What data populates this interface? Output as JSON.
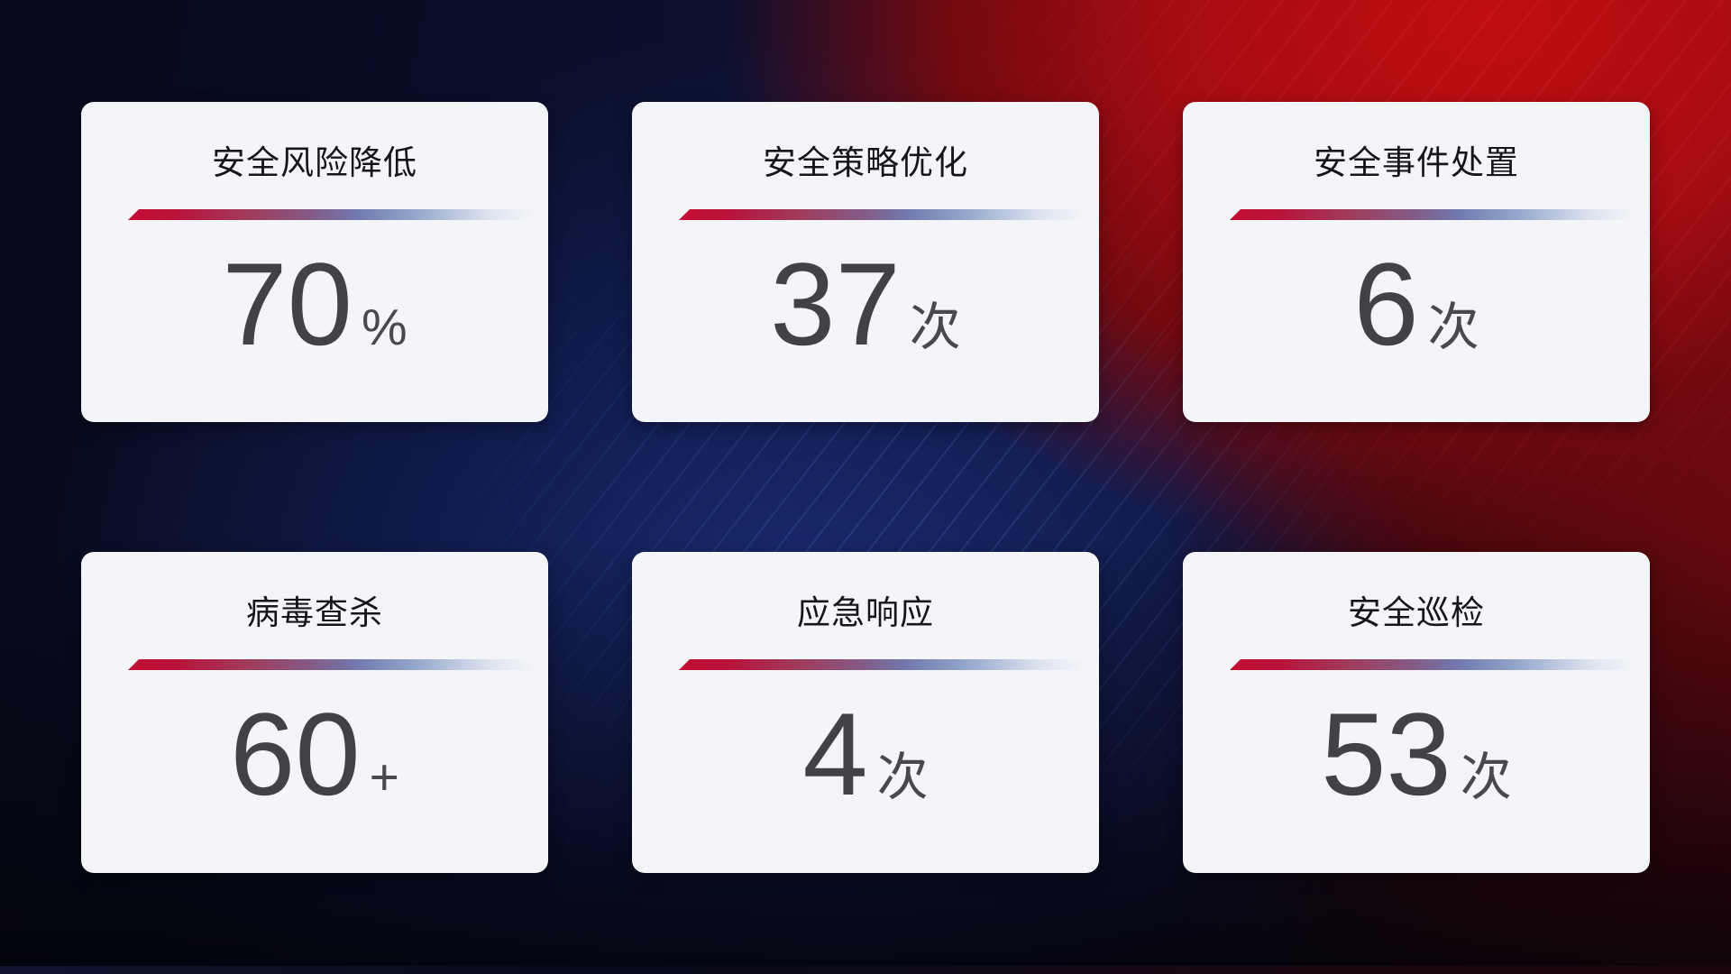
{
  "cards": [
    {
      "title": "安全风险降低",
      "value": "70",
      "unit": "%"
    },
    {
      "title": "安全策略优化",
      "value": "37",
      "unit": "次"
    },
    {
      "title": "安全事件处置",
      "value": "6",
      "unit": "次"
    },
    {
      "title": "病毒查杀",
      "value": "60",
      "unit": "+"
    },
    {
      "title": "应急响应",
      "value": "4",
      "unit": "次"
    },
    {
      "title": "安全巡检",
      "value": "53",
      "unit": "次"
    }
  ],
  "colors": {
    "card_background": "#f4f5f8",
    "title_text": "#14161c",
    "value_text": "#414146",
    "divider_red": "#c30e34",
    "divider_blue": "#aab8d6",
    "background_navy": "#0a0f2c",
    "background_blue": "#1a2a70",
    "background_red": "#b50d10",
    "background_maroon": "#2a060c"
  }
}
